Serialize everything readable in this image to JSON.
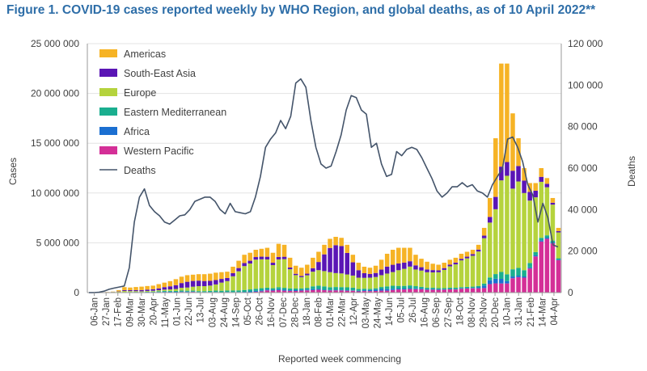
{
  "chart_data": {
    "type": "bar",
    "stacked": true,
    "title": "Figure 1. COVID-19 cases reported weekly by WHO Region, and global deaths, as of 10 April 2022**",
    "xlabel": "Reported week commencing",
    "ylabel": "Cases",
    "y2label": "Deaths",
    "ylim": [
      0,
      25000000
    ],
    "y2lim": [
      0,
      120000
    ],
    "yticks": [
      "0",
      "5 000 000",
      "10 000 000",
      "15 000 000",
      "20 000 000",
      "25 000 000"
    ],
    "y2ticks": [
      "0",
      "20 000",
      "40 000",
      "60 000",
      "80 000",
      "100 000",
      "120 000"
    ],
    "xtick_labels": [
      "06-Jan",
      "27-Jan",
      "17-Feb",
      "09-Mar",
      "30-Mar",
      "20-Apr",
      "11-May",
      "01-Jun",
      "22-Jun",
      "13-Jul",
      "03-Aug",
      "24-Aug",
      "14-Sep",
      "05-Oct",
      "26-Oct",
      "16-Nov",
      "07-Dec",
      "28-Dec",
      "18-Jan",
      "08-Feb",
      "01-Mar",
      "22-Mar",
      "12-Apr",
      "03-May",
      "24-May",
      "14-Jun",
      "05-Jul",
      "26-Jul",
      "16-Aug",
      "06-Sep",
      "27-Sep",
      "18-Oct",
      "08-Nov",
      "29-Nov",
      "20-Dec",
      "10-Jan",
      "31-Jan",
      "21-Feb",
      "14-Mar",
      "04-Apr"
    ],
    "legend_position": "top-left",
    "series_order": [
      "Western Pacific",
      "Africa",
      "Eastern Mediterranean",
      "Europe",
      "South-East Asia",
      "Americas"
    ],
    "legend_order": [
      "Americas",
      "South-East Asia",
      "Europe",
      "Eastern Mediterranean",
      "Africa",
      "Western Pacific"
    ],
    "colors": {
      "Americas": "#f6b325",
      "South-East Asia": "#5a15b5",
      "Europe": "#b5d33d",
      "Eastern Mediterranean": "#1aae8f",
      "Africa": "#1b6fd1",
      "Western Pacific": "#d42f97",
      "Deaths": "#44546a"
    },
    "deaths_label": "Deaths",
    "totals": [
      10000,
      15000,
      20000,
      60000,
      100000,
      250000,
      550000,
      510000,
      560000,
      600000,
      660000,
      700000,
      850000,
      1000000,
      1150000,
      1350000,
      1600000,
      1750000,
      1800000,
      1850000,
      1850000,
      1900000,
      2000000,
      2050000,
      2100000,
      2600000,
      3200000,
      3800000,
      4000000,
      4300000,
      4400000,
      4500000,
      4000000,
      4900000,
      4800000,
      3500000,
      2700000,
      2500000,
      2800000,
      3500000,
      4100000,
      4800000,
      5400000,
      5600000,
      5500000,
      4800000,
      3800000,
      3000000,
      2600000,
      2500000,
      2700000,
      3300000,
      3900000,
      4300000,
      4500000,
      4500000,
      4500000,
      3800000,
      3400000,
      3100000,
      2900000,
      2800000,
      3000000,
      3300000,
      3500000,
      3900000,
      4100000,
      4300000,
      4800000,
      6500000,
      9500000,
      15500000,
      23000000,
      23000000,
      18000000,
      15500000,
      12500000,
      11000000,
      11000000,
      12500000,
      11500000,
      9500000,
      6500000
    ],
    "shares": {
      "Americas": [
        0.25,
        0.25,
        0.25,
        0.25,
        0.25,
        0.5,
        0.55,
        0.52,
        0.55,
        0.58,
        0.55,
        0.52,
        0.5,
        0.45,
        0.45,
        0.45,
        0.4,
        0.38,
        0.35,
        0.35,
        0.37,
        0.38,
        0.37,
        0.33,
        0.3,
        0.25,
        0.23,
        0.22,
        0.2,
        0.17,
        0.18,
        0.2,
        0.25,
        0.27,
        0.25,
        0.28,
        0.3,
        0.33,
        0.32,
        0.3,
        0.25,
        0.2,
        0.17,
        0.15,
        0.15,
        0.17,
        0.2,
        0.25,
        0.25,
        0.25,
        0.27,
        0.3,
        0.33,
        0.35,
        0.35,
        0.33,
        0.3,
        0.28,
        0.25,
        0.25,
        0.22,
        0.2,
        0.18,
        0.15,
        0.14,
        0.13,
        0.12,
        0.1,
        0.1,
        0.12,
        0.2,
        0.38,
        0.45,
        0.43,
        0.32,
        0.18,
        0.1,
        0.08,
        0.07,
        0.07,
        0.05,
        0.05,
        0.05
      ],
      "South-East Asia": [
        0.05,
        0.05,
        0.05,
        0.05,
        0.1,
        0.12,
        0.15,
        0.18,
        0.18,
        0.2,
        0.2,
        0.22,
        0.22,
        0.25,
        0.27,
        0.28,
        0.3,
        0.33,
        0.32,
        0.3,
        0.28,
        0.25,
        0.22,
        0.18,
        0.15,
        0.12,
        0.1,
        0.08,
        0.07,
        0.06,
        0.06,
        0.06,
        0.06,
        0.05,
        0.05,
        0.05,
        0.05,
        0.05,
        0.06,
        0.1,
        0.2,
        0.35,
        0.45,
        0.5,
        0.5,
        0.45,
        0.35,
        0.25,
        0.18,
        0.15,
        0.15,
        0.17,
        0.18,
        0.17,
        0.15,
        0.14,
        0.12,
        0.11,
        0.1,
        0.09,
        0.08,
        0.07,
        0.06,
        0.05,
        0.05,
        0.04,
        0.04,
        0.04,
        0.04,
        0.04,
        0.06,
        0.08,
        0.06,
        0.06,
        0.1,
        0.1,
        0.1,
        0.08,
        0.06,
        0.04,
        0.03,
        0.02,
        0.02
      ],
      "Europe": [
        0.05,
        0.05,
        0.05,
        0.1,
        0.2,
        0.25,
        0.2,
        0.18,
        0.15,
        0.12,
        0.12,
        0.12,
        0.12,
        0.13,
        0.13,
        0.15,
        0.17,
        0.18,
        0.22,
        0.27,
        0.27,
        0.28,
        0.31,
        0.4,
        0.45,
        0.55,
        0.6,
        0.63,
        0.65,
        0.68,
        0.66,
        0.63,
        0.58,
        0.57,
        0.6,
        0.55,
        0.5,
        0.45,
        0.45,
        0.42,
        0.38,
        0.32,
        0.28,
        0.25,
        0.25,
        0.27,
        0.32,
        0.38,
        0.42,
        0.45,
        0.42,
        0.36,
        0.33,
        0.32,
        0.35,
        0.38,
        0.42,
        0.44,
        0.48,
        0.5,
        0.53,
        0.57,
        0.61,
        0.65,
        0.67,
        0.69,
        0.7,
        0.72,
        0.72,
        0.7,
        0.58,
        0.42,
        0.4,
        0.43,
        0.45,
        0.56,
        0.62,
        0.57,
        0.5,
        0.45,
        0.42,
        0.38,
        0.4
      ],
      "Eastern Mediterranean": [
        0.02,
        0.02,
        0.02,
        0.05,
        0.05,
        0.05,
        0.04,
        0.06,
        0.06,
        0.05,
        0.06,
        0.07,
        0.08,
        0.08,
        0.07,
        0.06,
        0.06,
        0.05,
        0.05,
        0.05,
        0.05,
        0.06,
        0.07,
        0.07,
        0.07,
        0.06,
        0.05,
        0.05,
        0.05,
        0.05,
        0.05,
        0.04,
        0.04,
        0.04,
        0.04,
        0.05,
        0.06,
        0.06,
        0.06,
        0.08,
        0.08,
        0.07,
        0.05,
        0.05,
        0.05,
        0.06,
        0.07,
        0.06,
        0.06,
        0.05,
        0.05,
        0.06,
        0.07,
        0.07,
        0.06,
        0.06,
        0.06,
        0.06,
        0.05,
        0.05,
        0.05,
        0.04,
        0.04,
        0.04,
        0.04,
        0.03,
        0.03,
        0.03,
        0.03,
        0.03,
        0.03,
        0.03,
        0.03,
        0.03,
        0.04,
        0.05,
        0.05,
        0.04,
        0.03,
        0.02,
        0.02,
        0.02,
        0.02
      ],
      "Africa": [
        0.01,
        0.01,
        0.01,
        0.02,
        0.02,
        0.02,
        0.02,
        0.02,
        0.03,
        0.03,
        0.04,
        0.04,
        0.04,
        0.04,
        0.04,
        0.03,
        0.03,
        0.03,
        0.02,
        0.02,
        0.02,
        0.02,
        0.02,
        0.02,
        0.02,
        0.02,
        0.02,
        0.02,
        0.02,
        0.02,
        0.02,
        0.02,
        0.02,
        0.02,
        0.02,
        0.02,
        0.03,
        0.03,
        0.03,
        0.03,
        0.02,
        0.01,
        0.01,
        0.01,
        0.01,
        0.01,
        0.01,
        0.02,
        0.03,
        0.04,
        0.05,
        0.05,
        0.04,
        0.03,
        0.02,
        0.02,
        0.02,
        0.02,
        0.02,
        0.02,
        0.02,
        0.02,
        0.01,
        0.01,
        0.01,
        0.01,
        0.01,
        0.01,
        0.02,
        0.04,
        0.04,
        0.03,
        0.02,
        0.01,
        0.01,
        0.01,
        0.01,
        0.01,
        0.01,
        0.01,
        0.01,
        0.01,
        0.01
      ],
      "Western Pacific": [
        0.62,
        0.62,
        0.62,
        0.53,
        0.38,
        0.06,
        0.04,
        0.04,
        0.03,
        0.02,
        0.03,
        0.03,
        0.04,
        0.05,
        0.04,
        0.03,
        0.04,
        0.03,
        0.04,
        0.01,
        0.01,
        0.01,
        0.01,
        0.0,
        0.01,
        0.0,
        0.0,
        0.0,
        0.01,
        0.02,
        0.03,
        0.05,
        0.05,
        0.05,
        0.04,
        0.05,
        0.06,
        0.08,
        0.08,
        0.07,
        0.07,
        0.05,
        0.04,
        0.04,
        0.04,
        0.04,
        0.05,
        0.04,
        0.06,
        0.06,
        0.06,
        0.06,
        0.05,
        0.06,
        0.07,
        0.07,
        0.08,
        0.09,
        0.1,
        0.09,
        0.1,
        0.1,
        0.1,
        0.1,
        0.09,
        0.1,
        0.1,
        0.1,
        0.09,
        0.07,
        0.09,
        0.06,
        0.04,
        0.04,
        0.08,
        0.1,
        0.12,
        0.22,
        0.33,
        0.41,
        0.47,
        0.52,
        0.5
      ]
    },
    "deaths": [
      0,
      0,
      200,
      700,
      1600,
      2200,
      2700,
      3200,
      12000,
      34000,
      46000,
      50000,
      42000,
      39000,
      37000,
      34000,
      33000,
      35000,
      37000,
      37500,
      40000,
      44000,
      45000,
      46000,
      46000,
      44000,
      40000,
      38000,
      43000,
      39000,
      38500,
      38000,
      39000,
      46000,
      56000,
      70000,
      74000,
      77000,
      83000,
      79000,
      85000,
      101000,
      103000,
      99000,
      83000,
      70000,
      62000,
      60000,
      61000,
      68000,
      76000,
      88000,
      95000,
      94000,
      88000,
      86000,
      70000,
      72000,
      62000,
      56000,
      57000,
      68000,
      66000,
      69000,
      70000,
      69000,
      65000,
      60000,
      55000,
      49000,
      46000,
      48000,
      51000,
      51000,
      53000,
      51000,
      52000,
      49000,
      48000,
      46000,
      52000,
      56000,
      60000,
      74000,
      75000,
      70000,
      63000,
      52000,
      47000,
      34000,
      43000,
      36000,
      23000,
      22000
    ]
  }
}
